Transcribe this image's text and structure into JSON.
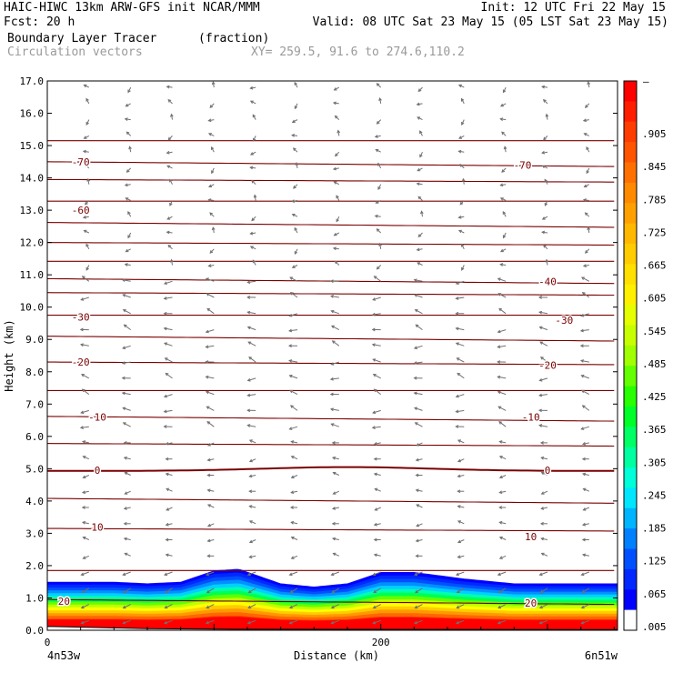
{
  "header": {
    "line1_left": "HAIC-HIWC 13km ARW-GFS init   NCAR/MMM",
    "line1_right": "Init: 12 UTC Fri 22 May 15",
    "line2_left": "Fcst:   20 h",
    "line2_right": "Valid: 08 UTC Sat 23 May 15 (05 LST Sat 23 May 15)",
    "field_name": "Boundary Layer Tracer",
    "field_units": "(fraction)",
    "vectors_label": "Circulation vectors",
    "xy_label": "XY= 259.5, 91.6 to 274.6,110.2"
  },
  "chart_data": {
    "type": "cross-section",
    "title": "Boundary Layer Tracer",
    "ylabel": "Height (km)",
    "xlabel": "Distance (km)",
    "ylim": [
      0,
      17
    ],
    "xlim": [
      0,
      342
    ],
    "yticks": [
      "0.0",
      "1.0",
      "2.0",
      "3.0",
      "4.0",
      "5.0",
      "6.0",
      "7.0",
      "8.0",
      "9.0",
      "10.0",
      "11.0",
      "12.0",
      "13.0",
      "14.0",
      "15.0",
      "16.0",
      "17.0"
    ],
    "xticks": [
      {
        "value": 0,
        "label": "0"
      },
      {
        "value": 200,
        "label": "200"
      }
    ],
    "x_start_label": "4n53w",
    "x_end_label": "6n51w",
    "tracer_top_km": {
      "x": [
        0,
        40,
        60,
        80,
        100,
        115,
        140,
        160,
        180,
        200,
        220,
        250,
        280,
        342
      ],
      "y": [
        1.5,
        1.5,
        1.45,
        1.5,
        1.85,
        1.9,
        1.45,
        1.35,
        1.45,
        1.8,
        1.8,
        1.6,
        1.45,
        1.45
      ]
    },
    "isotherm_labels": [
      {
        "label": "-70",
        "x": 20,
        "y": 14.5
      },
      {
        "label": "-70",
        "x": 285,
        "y": 14.4
      },
      {
        "label": "-60",
        "x": 20,
        "y": 13.0
      },
      {
        "label": "-40",
        "x": 300,
        "y": 10.8
      },
      {
        "label": "-30",
        "x": 20,
        "y": 9.7
      },
      {
        "label": "-30",
        "x": 310,
        "y": 9.6
      },
      {
        "label": "-20",
        "x": 20,
        "y": 8.3
      },
      {
        "label": "-20",
        "x": 300,
        "y": 8.2
      },
      {
        "label": "-10",
        "x": 30,
        "y": 6.6
      },
      {
        "label": "-10",
        "x": 290,
        "y": 6.6
      },
      {
        "label": "0",
        "x": 30,
        "y": 4.95
      },
      {
        "label": "0",
        "x": 300,
        "y": 4.95
      },
      {
        "label": "10",
        "x": 30,
        "y": 3.2
      },
      {
        "label": "10",
        "x": 290,
        "y": 2.9
      },
      {
        "label": "20",
        "x": 10,
        "y": 0.9
      },
      {
        "label": "20",
        "x": 290,
        "y": 0.85
      }
    ],
    "colorbar": {
      "labels": [
        ".905",
        ".845",
        ".785",
        ".725",
        ".665",
        ".605",
        ".545",
        ".485",
        ".425",
        ".365",
        ".305",
        ".245",
        ".185",
        ".125",
        ".065",
        ".005"
      ],
      "top_label": "–",
      "colors": [
        "#ff0000",
        "#ff1e00",
        "#ff3c00",
        "#ff5500",
        "#ff7000",
        "#ff8a00",
        "#ffa000",
        "#ffb800",
        "#ffcc00",
        "#ffe000",
        "#fff000",
        "#e6ff00",
        "#c8ff00",
        "#a0ff00",
        "#64ff00",
        "#28ff00",
        "#00ff28",
        "#00ff64",
        "#00ffa0",
        "#00ffd8",
        "#00e6ff",
        "#00b4ff",
        "#0080ff",
        "#0050ff",
        "#0028ff",
        "#0000ff",
        "#ffffff"
      ]
    },
    "grid": false
  },
  "colors": {
    "contour": "#7a0000",
    "vector": "#707070",
    "axis": "#000000"
  }
}
